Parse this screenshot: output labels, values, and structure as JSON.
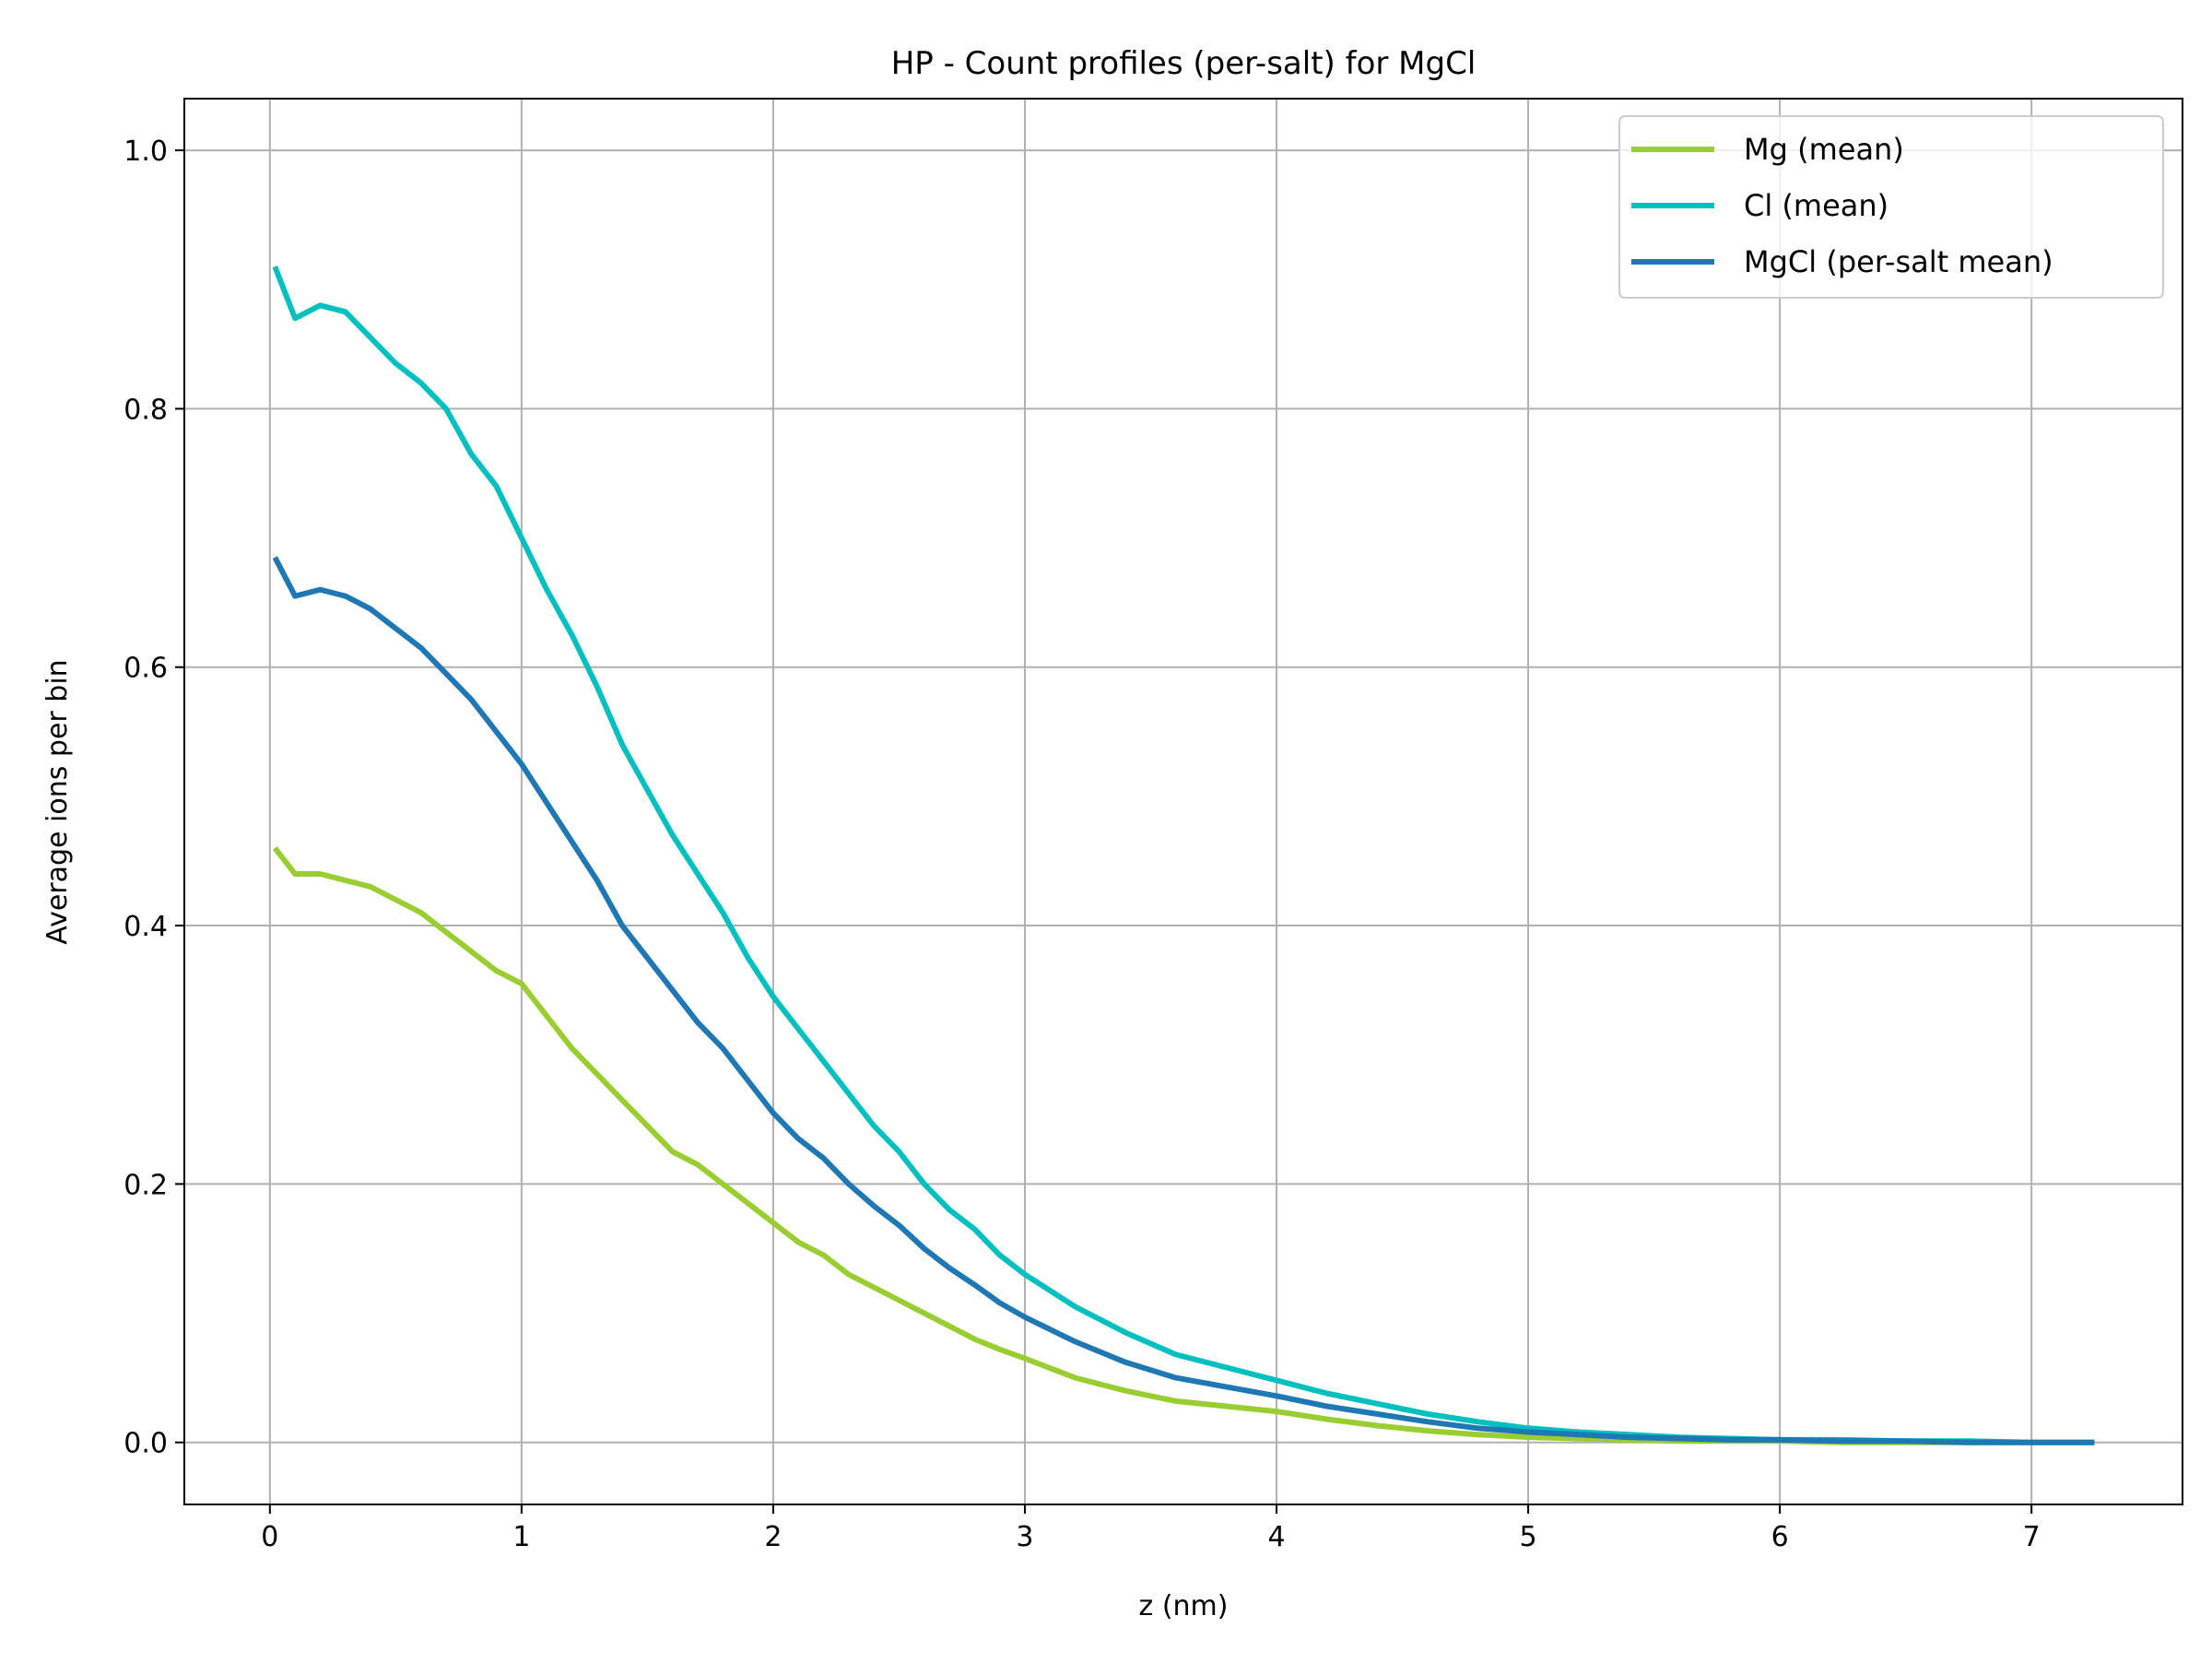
{
  "chart_data": {
    "type": "line",
    "title": "HP - Count profiles (per-salt) for MgCl",
    "xlabel": "z (nm)",
    "ylabel": "Average ions per bin",
    "xlim": [
      -0.34,
      7.6
    ],
    "ylim": [
      -0.048,
      1.04
    ],
    "xticks": [
      0,
      1,
      2,
      3,
      4,
      5,
      6,
      7
    ],
    "xtick_labels": [
      "0",
      "1",
      "2",
      "3",
      "4",
      "5",
      "6",
      "7"
    ],
    "yticks": [
      0.0,
      0.2,
      0.4,
      0.6,
      0.8,
      1.0
    ],
    "ytick_labels": [
      "0.0",
      "0.2",
      "0.4",
      "0.6",
      "0.8",
      "1.0"
    ],
    "grid": true,
    "legend_position": "top-right",
    "x": [
      0.02,
      0.1,
      0.2,
      0.3,
      0.4,
      0.5,
      0.6,
      0.7,
      0.8,
      0.9,
      1.0,
      1.1,
      1.2,
      1.3,
      1.4,
      1.5,
      1.6,
      1.7,
      1.8,
      1.9,
      2.0,
      2.1,
      2.2,
      2.3,
      2.4,
      2.5,
      2.6,
      2.7,
      2.8,
      2.9,
      3.0,
      3.2,
      3.4,
      3.6,
      3.8,
      4.0,
      4.2,
      4.4,
      4.6,
      4.8,
      5.0,
      5.2,
      5.4,
      5.6,
      5.8,
      6.0,
      6.25,
      6.5,
      6.75,
      7.0,
      7.25
    ],
    "series": [
      {
        "name": "Mg (mean)",
        "color": "#9ACD32",
        "values": [
          0.46,
          0.44,
          0.44,
          0.435,
          0.43,
          0.42,
          0.41,
          0.395,
          0.38,
          0.365,
          0.355,
          0.33,
          0.305,
          0.285,
          0.265,
          0.245,
          0.225,
          0.215,
          0.2,
          0.185,
          0.17,
          0.155,
          0.145,
          0.13,
          0.12,
          0.11,
          0.1,
          0.09,
          0.08,
          0.072,
          0.065,
          0.05,
          0.04,
          0.032,
          0.028,
          0.024,
          0.018,
          0.013,
          0.009,
          0.006,
          0.004,
          0.003,
          0.002,
          0.001,
          0.001,
          0.001,
          0.0,
          0.0,
          0.0,
          0.0,
          0.0
        ]
      },
      {
        "name": "Cl (mean)",
        "color": "#00BFBF",
        "values": [
          0.91,
          0.87,
          0.88,
          0.875,
          0.855,
          0.835,
          0.82,
          0.8,
          0.765,
          0.74,
          0.7,
          0.66,
          0.625,
          0.585,
          0.54,
          0.505,
          0.47,
          0.44,
          0.41,
          0.375,
          0.345,
          0.32,
          0.295,
          0.27,
          0.245,
          0.225,
          0.2,
          0.18,
          0.165,
          0.145,
          0.13,
          0.105,
          0.085,
          0.068,
          0.058,
          0.048,
          0.038,
          0.03,
          0.022,
          0.016,
          0.011,
          0.008,
          0.006,
          0.004,
          0.003,
          0.002,
          0.002,
          0.001,
          0.001,
          0.0,
          0.0
        ]
      },
      {
        "name": "MgCl (per-salt mean)",
        "color": "#1F77B4",
        "values": [
          0.685,
          0.655,
          0.66,
          0.655,
          0.645,
          0.63,
          0.615,
          0.595,
          0.575,
          0.55,
          0.525,
          0.495,
          0.465,
          0.435,
          0.4,
          0.375,
          0.35,
          0.325,
          0.305,
          0.28,
          0.255,
          0.235,
          0.22,
          0.2,
          0.183,
          0.168,
          0.15,
          0.135,
          0.122,
          0.108,
          0.097,
          0.078,
          0.062,
          0.05,
          0.043,
          0.036,
          0.028,
          0.022,
          0.016,
          0.011,
          0.008,
          0.006,
          0.004,
          0.003,
          0.002,
          0.002,
          0.001,
          0.001,
          0.0,
          0.0,
          0.0
        ]
      }
    ]
  }
}
